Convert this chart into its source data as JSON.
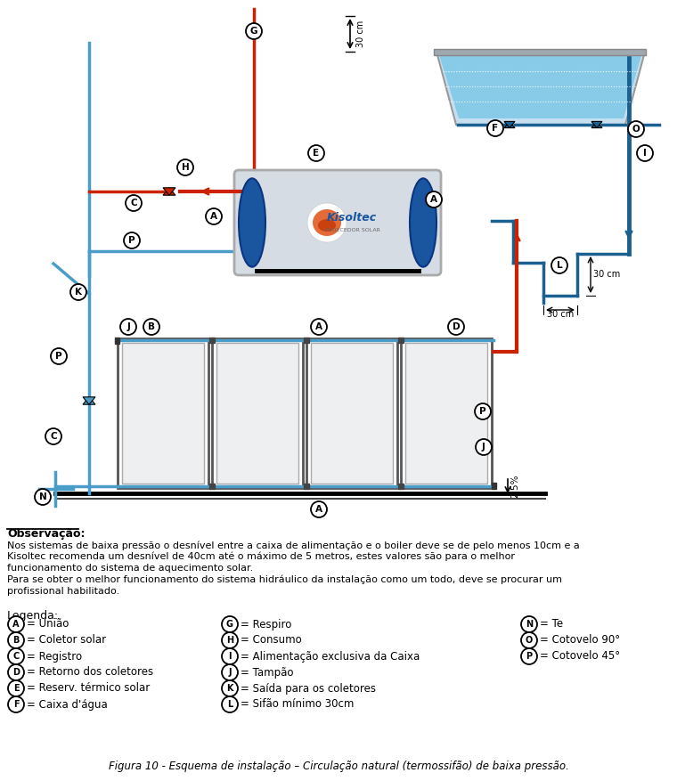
{
  "title": "Figura 10 - Esquema de instalação – Circulação natural (termossifão) de baixa pressão.",
  "obs_title": "Observação:",
  "obs_text": [
    "Nos sistemas de baixa pressão o desnível entre a caixa de alimentação e o boiler deve se de pelo menos 10cm e a",
    "Kisoltec recomenda um desnível de 40cm até o máximo de 5 metros, estes valores são para o melhor",
    "funcionamento do sistema de aquecimento solar.",
    "Para se obter o melhor funcionamento do sistema hidráulico da instalação como um todo, deve se procurar um",
    "profissional habilitado."
  ],
  "legend_title": "Legenda:",
  "legend_col1": [
    [
      "A",
      "= União"
    ],
    [
      "B",
      "= Coletor solar"
    ],
    [
      "C",
      "= Registro"
    ],
    [
      "D",
      "= Retorno dos coletores"
    ],
    [
      "E",
      "= Reserv. térmico solar"
    ],
    [
      "F",
      "= Caixa d'água"
    ]
  ],
  "legend_col2": [
    [
      "G",
      "= Respiro"
    ],
    [
      "H",
      "= Consumo"
    ],
    [
      "I",
      "= Alimentação exclusiva da Caixa"
    ],
    [
      "J",
      "= Tampão"
    ],
    [
      "K",
      "= Saída para os coletores"
    ],
    [
      "L",
      "= Sifão mínimo 30cm"
    ]
  ],
  "legend_col3": [
    [
      "N",
      "= Te"
    ],
    [
      "O",
      "= Cotovelo 90°"
    ],
    [
      "P",
      "= Cotovelo 45°"
    ]
  ],
  "blue": "#4a9dc9",
  "dark_blue": "#1a6090",
  "red": "#cc2200",
  "water_fill": "#7ec8e8",
  "bg": "#ffffff"
}
